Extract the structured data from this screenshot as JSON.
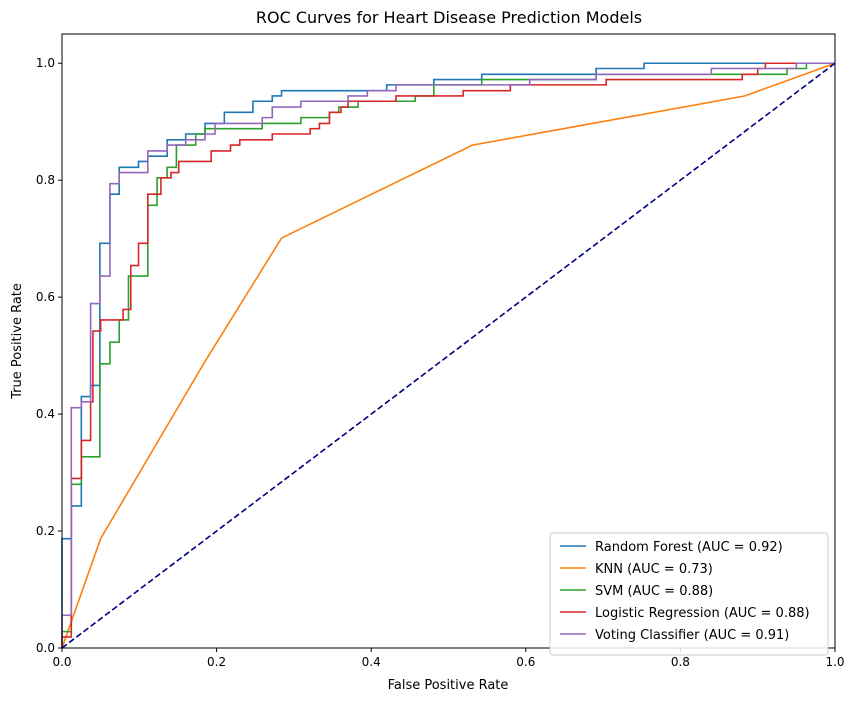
{
  "chart_data": {
    "type": "line",
    "title": "ROC Curves for Heart Disease Prediction Models",
    "xlabel": "False Positive Rate",
    "ylabel": "True Positive Rate",
    "xlim": [
      0.0,
      1.0
    ],
    "ylim": [
      0.0,
      1.05
    ],
    "x_ticks": [
      "0.0",
      "0.2",
      "0.4",
      "0.6",
      "0.8",
      "1.0"
    ],
    "y_ticks": [
      "0.0",
      "0.2",
      "0.4",
      "0.6",
      "0.8",
      "1.0"
    ],
    "grid": false,
    "legend_position": "lower-right",
    "series": [
      {
        "name": "Random Forest (AUC = 0.92)",
        "color": "#1f77b4",
        "points": [
          [
            0,
            0
          ],
          [
            0,
            0.187
          ],
          [
            0.012,
            0.187
          ],
          [
            0.012,
            0.243
          ],
          [
            0.025,
            0.243
          ],
          [
            0.025,
            0.43
          ],
          [
            0.037,
            0.43
          ],
          [
            0.037,
            0.449
          ],
          [
            0.049,
            0.449
          ],
          [
            0.049,
            0.692
          ],
          [
            0.062,
            0.692
          ],
          [
            0.062,
            0.776
          ],
          [
            0.074,
            0.776
          ],
          [
            0.074,
            0.822
          ],
          [
            0.099,
            0.822
          ],
          [
            0.099,
            0.832
          ],
          [
            0.111,
            0.832
          ],
          [
            0.111,
            0.841
          ],
          [
            0.136,
            0.841
          ],
          [
            0.136,
            0.869
          ],
          [
            0.16,
            0.869
          ],
          [
            0.16,
            0.879
          ],
          [
            0.185,
            0.879
          ],
          [
            0.185,
            0.897
          ],
          [
            0.21,
            0.897
          ],
          [
            0.21,
            0.916
          ],
          [
            0.247,
            0.916
          ],
          [
            0.247,
            0.935
          ],
          [
            0.272,
            0.935
          ],
          [
            0.272,
            0.944
          ],
          [
            0.284,
            0.944
          ],
          [
            0.284,
            0.953
          ],
          [
            0.42,
            0.953
          ],
          [
            0.42,
            0.963
          ],
          [
            0.481,
            0.963
          ],
          [
            0.481,
            0.972
          ],
          [
            0.543,
            0.972
          ],
          [
            0.543,
            0.981
          ],
          [
            0.691,
            0.981
          ],
          [
            0.691,
            0.991
          ],
          [
            0.753,
            0.991
          ],
          [
            0.753,
            1.0
          ],
          [
            1,
            1
          ]
        ]
      },
      {
        "name": "KNN (AUC = 0.73)",
        "color": "#ff7f0e",
        "points": [
          [
            0,
            0
          ],
          [
            0.05,
            0.187
          ],
          [
            0.185,
            0.49
          ],
          [
            0.284,
            0.701
          ],
          [
            0.531,
            0.86
          ],
          [
            0.883,
            0.944
          ],
          [
            1,
            1
          ]
        ]
      },
      {
        "name": "SVM (AUC = 0.88)",
        "color": "#2ca02c",
        "points": [
          [
            0,
            0
          ],
          [
            0,
            0.028
          ],
          [
            0.012,
            0.028
          ],
          [
            0.012,
            0.28
          ],
          [
            0.025,
            0.28
          ],
          [
            0.025,
            0.327
          ],
          [
            0.049,
            0.327
          ],
          [
            0.049,
            0.486
          ],
          [
            0.062,
            0.486
          ],
          [
            0.062,
            0.523
          ],
          [
            0.074,
            0.523
          ],
          [
            0.074,
            0.561
          ],
          [
            0.086,
            0.561
          ],
          [
            0.086,
            0.636
          ],
          [
            0.111,
            0.636
          ],
          [
            0.111,
            0.757
          ],
          [
            0.123,
            0.757
          ],
          [
            0.123,
            0.804
          ],
          [
            0.136,
            0.804
          ],
          [
            0.136,
            0.822
          ],
          [
            0.148,
            0.822
          ],
          [
            0.148,
            0.86
          ],
          [
            0.173,
            0.86
          ],
          [
            0.173,
            0.879
          ],
          [
            0.185,
            0.879
          ],
          [
            0.185,
            0.888
          ],
          [
            0.259,
            0.888
          ],
          [
            0.259,
            0.897
          ],
          [
            0.309,
            0.897
          ],
          [
            0.309,
            0.907
          ],
          [
            0.346,
            0.907
          ],
          [
            0.346,
            0.916
          ],
          [
            0.358,
            0.916
          ],
          [
            0.358,
            0.925
          ],
          [
            0.383,
            0.925
          ],
          [
            0.383,
            0.935
          ],
          [
            0.457,
            0.935
          ],
          [
            0.457,
            0.944
          ],
          [
            0.481,
            0.944
          ],
          [
            0.481,
            0.963
          ],
          [
            0.543,
            0.963
          ],
          [
            0.543,
            0.972
          ],
          [
            0.691,
            0.972
          ],
          [
            0.691,
            0.981
          ],
          [
            0.938,
            0.981
          ],
          [
            0.938,
            0.991
          ],
          [
            0.963,
            0.991
          ],
          [
            0.963,
            1.0
          ],
          [
            1,
            1
          ]
        ]
      },
      {
        "name": "Logistic Regression (AUC = 0.88)",
        "color": "#d62728",
        "points": [
          [
            0,
            0
          ],
          [
            0,
            0.019
          ],
          [
            0.012,
            0.019
          ],
          [
            0.012,
            0.29
          ],
          [
            0.025,
            0.29
          ],
          [
            0.025,
            0.355
          ],
          [
            0.037,
            0.355
          ],
          [
            0.037,
            0.421
          ],
          [
            0.04,
            0.421
          ],
          [
            0.04,
            0.542
          ],
          [
            0.05,
            0.542
          ],
          [
            0.05,
            0.561
          ],
          [
            0.079,
            0.561
          ],
          [
            0.079,
            0.579
          ],
          [
            0.089,
            0.579
          ],
          [
            0.089,
            0.654
          ],
          [
            0.099,
            0.654
          ],
          [
            0.099,
            0.692
          ],
          [
            0.111,
            0.692
          ],
          [
            0.111,
            0.776
          ],
          [
            0.128,
            0.776
          ],
          [
            0.128,
            0.804
          ],
          [
            0.141,
            0.804
          ],
          [
            0.141,
            0.813
          ],
          [
            0.151,
            0.813
          ],
          [
            0.151,
            0.832
          ],
          [
            0.193,
            0.832
          ],
          [
            0.193,
            0.85
          ],
          [
            0.218,
            0.85
          ],
          [
            0.218,
            0.86
          ],
          [
            0.23,
            0.86
          ],
          [
            0.23,
            0.869
          ],
          [
            0.272,
            0.869
          ],
          [
            0.272,
            0.879
          ],
          [
            0.321,
            0.879
          ],
          [
            0.321,
            0.888
          ],
          [
            0.333,
            0.888
          ],
          [
            0.333,
            0.897
          ],
          [
            0.346,
            0.897
          ],
          [
            0.346,
            0.916
          ],
          [
            0.361,
            0.916
          ],
          [
            0.361,
            0.925
          ],
          [
            0.37,
            0.925
          ],
          [
            0.37,
            0.935
          ],
          [
            0.432,
            0.935
          ],
          [
            0.432,
            0.944
          ],
          [
            0.519,
            0.944
          ],
          [
            0.519,
            0.953
          ],
          [
            0.58,
            0.953
          ],
          [
            0.58,
            0.963
          ],
          [
            0.704,
            0.963
          ],
          [
            0.704,
            0.972
          ],
          [
            0.88,
            0.972
          ],
          [
            0.88,
            0.981
          ],
          [
            0.9,
            0.981
          ],
          [
            0.9,
            0.991
          ],
          [
            0.91,
            0.991
          ],
          [
            0.91,
            1.0
          ],
          [
            1,
            1
          ]
        ]
      },
      {
        "name": "Voting Classifier (AUC = 0.91)",
        "color": "#9467bd",
        "points": [
          [
            0,
            0
          ],
          [
            0,
            0.056
          ],
          [
            0.012,
            0.056
          ],
          [
            0.012,
            0.411
          ],
          [
            0.025,
            0.411
          ],
          [
            0.025,
            0.421
          ],
          [
            0.037,
            0.421
          ],
          [
            0.037,
            0.589
          ],
          [
            0.049,
            0.589
          ],
          [
            0.049,
            0.636
          ],
          [
            0.062,
            0.636
          ],
          [
            0.062,
            0.794
          ],
          [
            0.074,
            0.794
          ],
          [
            0.074,
            0.813
          ],
          [
            0.111,
            0.813
          ],
          [
            0.111,
            0.85
          ],
          [
            0.136,
            0.85
          ],
          [
            0.136,
            0.86
          ],
          [
            0.16,
            0.86
          ],
          [
            0.16,
            0.869
          ],
          [
            0.185,
            0.869
          ],
          [
            0.185,
            0.879
          ],
          [
            0.198,
            0.879
          ],
          [
            0.198,
            0.897
          ],
          [
            0.259,
            0.897
          ],
          [
            0.259,
            0.907
          ],
          [
            0.272,
            0.907
          ],
          [
            0.272,
            0.925
          ],
          [
            0.309,
            0.925
          ],
          [
            0.309,
            0.935
          ],
          [
            0.37,
            0.935
          ],
          [
            0.37,
            0.944
          ],
          [
            0.395,
            0.944
          ],
          [
            0.395,
            0.953
          ],
          [
            0.432,
            0.953
          ],
          [
            0.432,
            0.963
          ],
          [
            0.605,
            0.963
          ],
          [
            0.605,
            0.972
          ],
          [
            0.691,
            0.972
          ],
          [
            0.691,
            0.981
          ],
          [
            0.84,
            0.981
          ],
          [
            0.84,
            0.991
          ],
          [
            0.95,
            0.991
          ],
          [
            0.95,
            1.0
          ],
          [
            1,
            1
          ]
        ]
      },
      {
        "name": "",
        "color": "#000080",
        "dashed": true,
        "points": [
          [
            0,
            0
          ],
          [
            1,
            1
          ]
        ]
      }
    ]
  }
}
